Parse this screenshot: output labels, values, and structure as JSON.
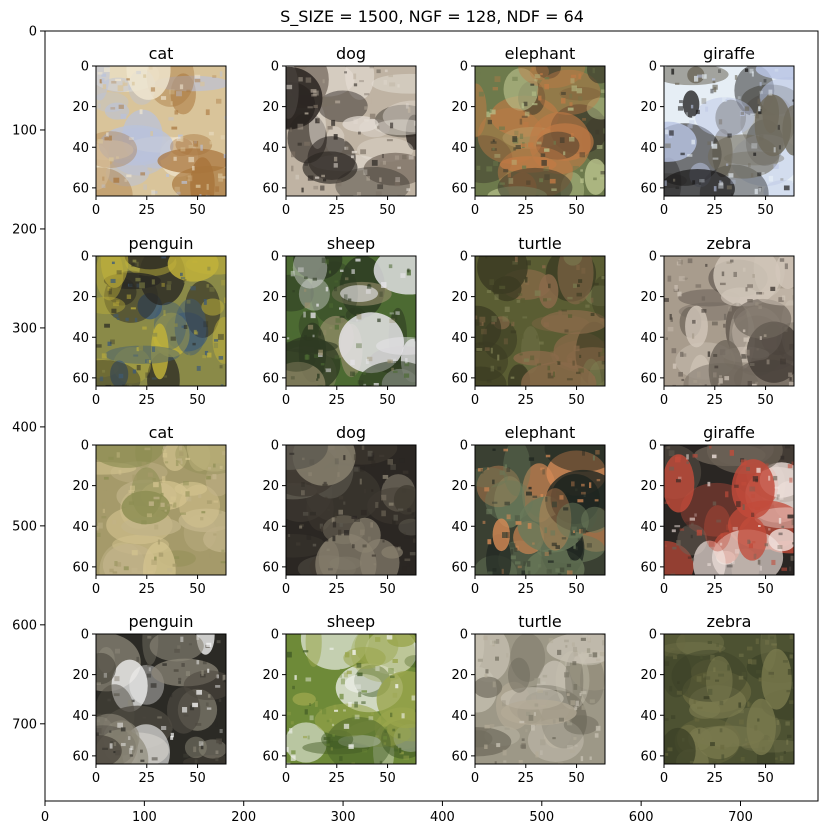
{
  "chart_data": {
    "type": "image-grid",
    "title": "S_SIZE = 1500, NGF = 128, NDF = 64",
    "outer_axes": {
      "xlim": [
        0,
        778
      ],
      "ylim": [
        0,
        778
      ],
      "xticks": [
        0,
        100,
        200,
        300,
        400,
        500,
        600,
        700
      ],
      "yticks": [
        0,
        100,
        200,
        300,
        400,
        500,
        600,
        700
      ],
      "xtick_labels": [
        "0",
        "100",
        "200",
        "300",
        "400",
        "500",
        "600",
        "700"
      ],
      "ytick_labels": [
        "0",
        "100",
        "200",
        "300",
        "400",
        "500",
        "600",
        "700"
      ]
    },
    "panel_axes": {
      "xticks": [
        0,
        25,
        50
      ],
      "yticks": [
        0,
        20,
        40,
        60
      ],
      "xtick_labels": [
        "0",
        "25",
        "50"
      ],
      "ytick_labels": [
        "0",
        "20",
        "40",
        "60"
      ],
      "range": [
        0,
        64
      ]
    },
    "panels": [
      {
        "label": "cat",
        "colors": [
          "#d9c49a",
          "#f0e6d0",
          "#a8753c",
          "#b9c2dc"
        ]
      },
      {
        "label": "dog",
        "colors": [
          "#bfb3a3",
          "#2a2521",
          "#e5ded5",
          "#7a6f63"
        ]
      },
      {
        "label": "elephant",
        "colors": [
          "#6d7a4c",
          "#c27a45",
          "#3d3a2c",
          "#b7c08a"
        ]
      },
      {
        "label": "giraffe",
        "colors": [
          "#e6eef5",
          "#1e1d1d",
          "#b9c4e4",
          "#6f6a5c"
        ]
      },
      {
        "label": "penguin",
        "colors": [
          "#8a8a48",
          "#3d5a78",
          "#c1b23a",
          "#2b2a24"
        ]
      },
      {
        "label": "sheep",
        "colors": [
          "#4c6a32",
          "#e9e7ec",
          "#2d3a22",
          "#9a8f6d"
        ]
      },
      {
        "label": "turtle",
        "colors": [
          "#5a5d33",
          "#8a6a4a",
          "#3a3a22",
          "#7d7f52"
        ]
      },
      {
        "label": "zebra",
        "colors": [
          "#a89c8d",
          "#3c3530",
          "#d2c7ba",
          "#6f665c"
        ]
      },
      {
        "label": "cat",
        "colors": [
          "#a59a6a",
          "#c2b48a",
          "#8c8d52",
          "#d4c48f"
        ]
      },
      {
        "label": "dog",
        "colors": [
          "#2b2723",
          "#5e5a50",
          "#8a8270",
          "#403a32"
        ]
      },
      {
        "label": "elephant",
        "colors": [
          "#3a4032",
          "#d58a55",
          "#6a7a5a",
          "#1f2520"
        ]
      },
      {
        "label": "giraffe",
        "colors": [
          "#2a2623",
          "#f1e3de",
          "#6b6155",
          "#c24b3a"
        ]
      },
      {
        "label": "penguin",
        "colors": [
          "#2b2a25",
          "#ffffff",
          "#4d4940",
          "#8c8778"
        ]
      },
      {
        "label": "sheep",
        "colors": [
          "#6e8a38",
          "#f7f7f7",
          "#9aa54c",
          "#415a25"
        ]
      },
      {
        "label": "turtle",
        "colors": [
          "#9d9887",
          "#c8c2b4",
          "#6e6a5c",
          "#b3ab97"
        ]
      },
      {
        "label": "zebra",
        "colors": [
          "#4d5232",
          "#6a6a40",
          "#3a3f26",
          "#7a7a4e"
        ]
      }
    ]
  }
}
